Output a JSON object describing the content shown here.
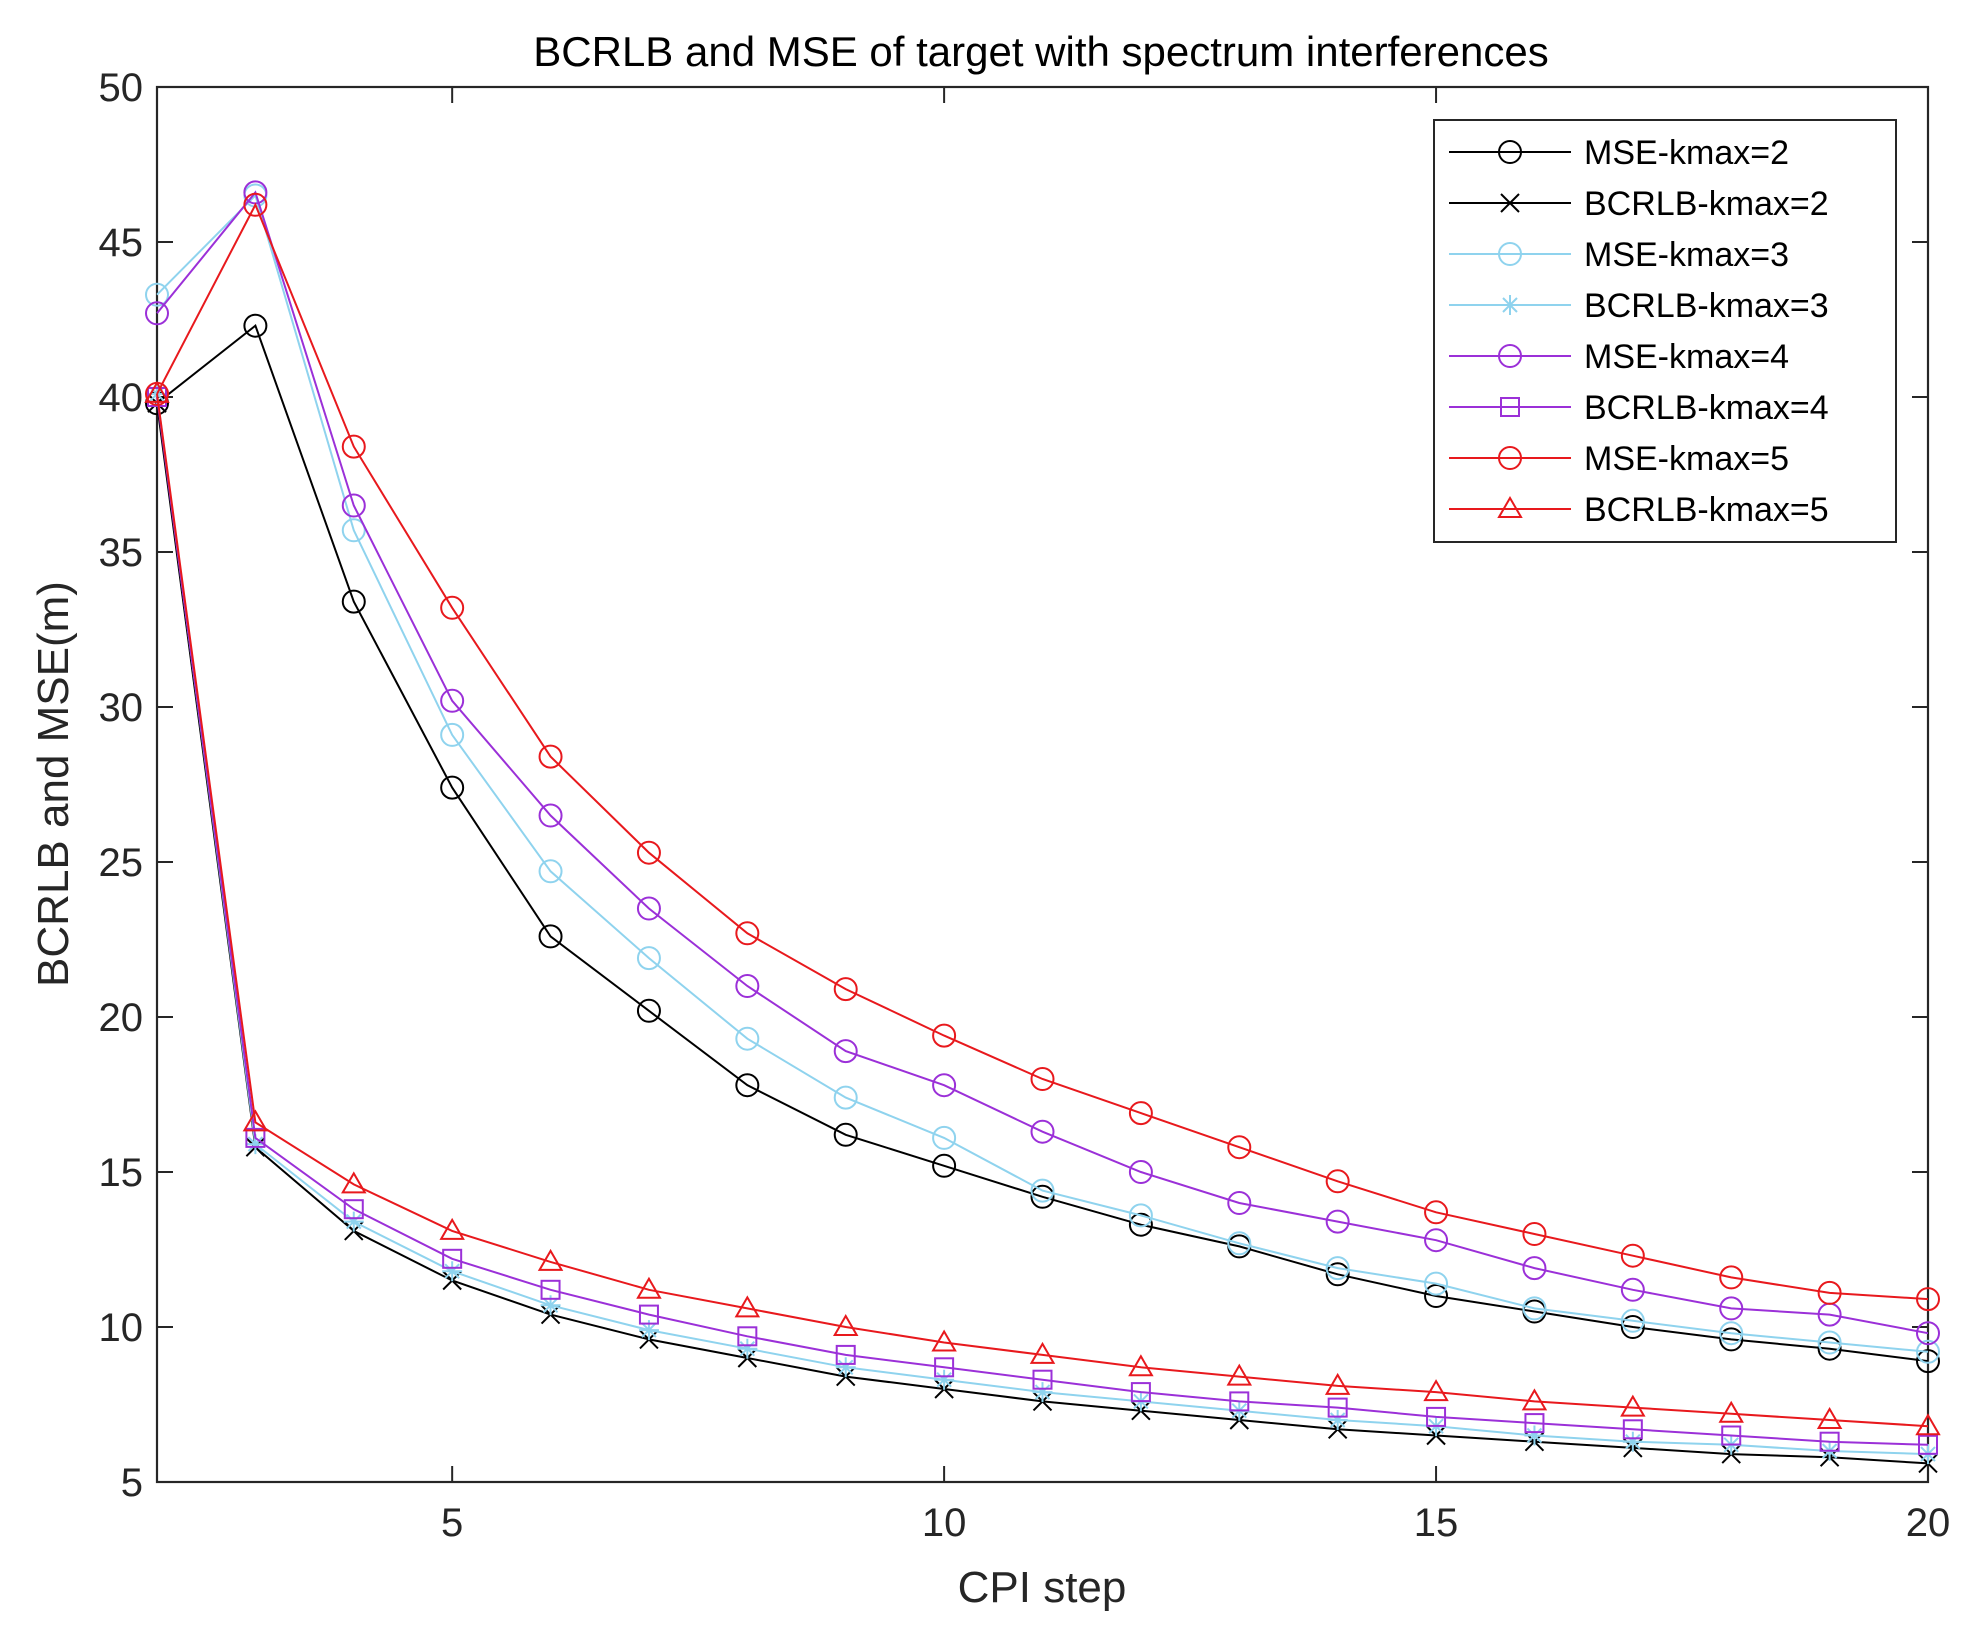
{
  "chart_data": {
    "type": "line",
    "title": "BCRLB and MSE of target with spectrum interferences",
    "xlabel": "CPI step",
    "ylabel": "BCRLB and MSE(m)",
    "xlim": [
      2,
      20
    ],
    "ylim": [
      5,
      50
    ],
    "xticks": [
      5,
      10,
      15,
      20
    ],
    "yticks": [
      5,
      10,
      15,
      20,
      25,
      30,
      35,
      40,
      45,
      50
    ],
    "grid": false,
    "legend_position": "top-right",
    "x": [
      2,
      3,
      4,
      5,
      6,
      7,
      8,
      9,
      10,
      11,
      12,
      13,
      14,
      15,
      16,
      17,
      18,
      19,
      20
    ],
    "series": [
      {
        "name": "MSE-kmax=2",
        "color": "#000000",
        "marker": "circle",
        "values": [
          39.8,
          42.3,
          33.4,
          27.4,
          22.6,
          20.2,
          17.8,
          16.2,
          15.2,
          14.2,
          13.3,
          12.6,
          11.7,
          11.0,
          10.5,
          10.0,
          9.6,
          9.3,
          8.9
        ]
      },
      {
        "name": "BCRLB-kmax=2",
        "color": "#000000",
        "marker": "x",
        "values": [
          39.8,
          15.8,
          13.1,
          11.5,
          10.4,
          9.6,
          9.0,
          8.4,
          8.0,
          7.6,
          7.3,
          7.0,
          6.7,
          6.5,
          6.3,
          6.1,
          5.9,
          5.8,
          5.6
        ]
      },
      {
        "name": "MSE-kmax=3",
        "color": "#8fd3ee",
        "marker": "circle",
        "values": [
          43.3,
          46.5,
          35.7,
          29.1,
          24.7,
          21.9,
          19.3,
          17.4,
          16.1,
          14.4,
          13.6,
          12.7,
          11.9,
          11.4,
          10.6,
          10.2,
          9.8,
          9.5,
          9.2
        ]
      },
      {
        "name": "BCRLB-kmax=3",
        "color": "#8fd3ee",
        "marker": "star",
        "values": [
          40.1,
          15.9,
          13.4,
          11.8,
          10.7,
          9.9,
          9.3,
          8.7,
          8.3,
          7.9,
          7.6,
          7.3,
          7.0,
          6.8,
          6.5,
          6.3,
          6.2,
          6.0,
          5.9
        ]
      },
      {
        "name": "MSE-kmax=4",
        "color": "#9b30d8",
        "marker": "circle",
        "values": [
          42.7,
          46.6,
          36.5,
          30.2,
          26.5,
          23.5,
          21.0,
          18.9,
          17.8,
          16.3,
          15.0,
          14.0,
          13.4,
          12.8,
          11.9,
          11.2,
          10.6,
          10.4,
          9.8
        ]
      },
      {
        "name": "BCRLB-kmax=4",
        "color": "#9b30d8",
        "marker": "square",
        "values": [
          40.0,
          16.1,
          13.8,
          12.2,
          11.2,
          10.4,
          9.7,
          9.1,
          8.7,
          8.3,
          7.9,
          7.6,
          7.4,
          7.1,
          6.9,
          6.7,
          6.5,
          6.3,
          6.2
        ]
      },
      {
        "name": "MSE-kmax=5",
        "color": "#e8191d",
        "marker": "circle",
        "values": [
          40.1,
          46.2,
          38.4,
          33.2,
          28.4,
          25.3,
          22.7,
          20.9,
          19.4,
          18.0,
          16.9,
          15.8,
          14.7,
          13.7,
          13.0,
          12.3,
          11.6,
          11.1,
          10.9
        ]
      },
      {
        "name": "BCRLB-kmax=5",
        "color": "#e8191d",
        "marker": "triangle",
        "values": [
          40.1,
          16.6,
          14.6,
          13.1,
          12.1,
          11.2,
          10.6,
          10.0,
          9.5,
          9.1,
          8.7,
          8.4,
          8.1,
          7.9,
          7.6,
          7.4,
          7.2,
          7.0,
          6.8
        ]
      }
    ]
  }
}
